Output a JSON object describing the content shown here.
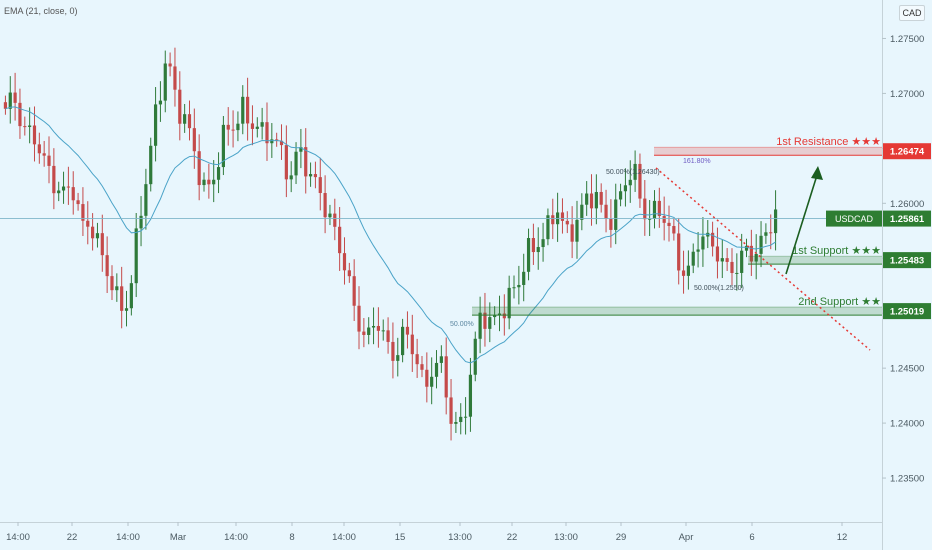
{
  "indicator": "EMA (21, close, 0)",
  "currency_button": "CAD",
  "colors": {
    "background": "#e8f6fd",
    "up": "#2f7a3a",
    "down": "#c44a4a",
    "ema": "#4aa3c8",
    "resistance": "#e53935",
    "support": "#2e7d32"
  },
  "chart_data": {
    "type": "candlestick",
    "symbol": "USDCAD",
    "y_ticks": [
      "1.27500",
      "1.27000",
      "1.26500",
      "1.26000",
      "1.25500",
      "1.25000",
      "1.24500",
      "1.24000",
      "1.23500"
    ],
    "x_ticks": [
      "14:00",
      "22",
      "14:00",
      "Mar",
      "14:00",
      "8",
      "14:00",
      "15",
      "13:00",
      "22",
      "13:00",
      "29",
      "Apr",
      "6",
      "12"
    ],
    "ylim": [
      1.231,
      1.2785
    ],
    "last_price": {
      "label": "USDCAD",
      "value": "1.25861"
    },
    "levels": [
      {
        "name": "1st Resistance ★★★",
        "value": "1.26474",
        "kind": "resistance"
      },
      {
        "name": "1st Support ★★★",
        "value": "1.25483",
        "kind": "support"
      },
      {
        "name": "2nd Support ★★",
        "value": "1.25019",
        "kind": "support"
      }
    ],
    "annotations": {
      "fib_a": "50.00%(1.26430)",
      "fib_b": "161.80%",
      "fib_c": "50.00%(1.2550)",
      "fib_d": "50.00%"
    },
    "close_path": [
      1.268,
      1.2695,
      1.2672,
      1.2661,
      1.2632,
      1.2623,
      1.2613,
      1.2616,
      1.2572,
      1.2586,
      1.2561,
      1.2528,
      1.2498,
      1.2517,
      1.2588,
      1.2627,
      1.2688,
      1.2741,
      1.2694,
      1.2668,
      1.2639,
      1.2615,
      1.2628,
      1.2656,
      1.2671,
      1.2691,
      1.2673,
      1.2657,
      1.2662,
      1.2653,
      1.2622,
      1.2645,
      1.2625,
      1.2622,
      1.2582,
      1.2561,
      1.2534,
      1.2502,
      1.2468,
      1.2493,
      1.2476,
      1.2466,
      1.2478,
      1.2462,
      1.2437,
      1.2456,
      1.2445,
      1.2392,
      1.2406,
      1.2449,
      1.2496,
      1.2488,
      1.2508,
      1.2513,
      1.2524,
      1.2556,
      1.2571,
      1.2574,
      1.2591,
      1.2572,
      1.2589,
      1.2599,
      1.2604,
      1.2588,
      1.2596,
      1.2611,
      1.2629,
      1.2598,
      1.2594,
      1.2588,
      1.2569,
      1.2546,
      1.2541,
      1.2567,
      1.2561,
      1.2562,
      1.2539,
      1.2538,
      1.2555,
      1.2563,
      1.2572,
      1.2586
    ]
  }
}
